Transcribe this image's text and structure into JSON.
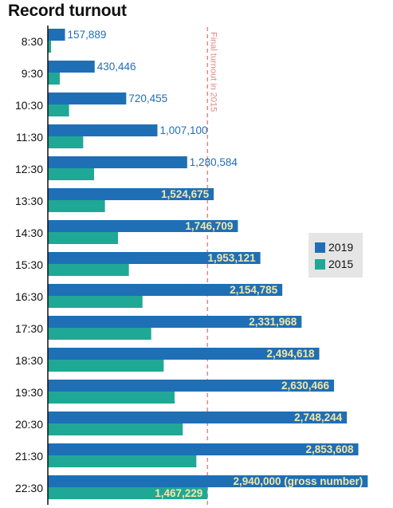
{
  "title": "Record turnout",
  "chart_data": {
    "type": "bar",
    "orientation": "horizontal",
    "title": "Record turnout",
    "categories": [
      "8:30",
      "9:30",
      "10:30",
      "11:30",
      "12:30",
      "13:30",
      "14:30",
      "15:30",
      "16:30",
      "17:30",
      "18:30",
      "19:30",
      "20:30",
      "21:30",
      "22:30"
    ],
    "series": [
      {
        "name": "2019",
        "color": "#1f6fb6",
        "values": [
          157889,
          430446,
          720455,
          1007100,
          1280584,
          1524675,
          1746709,
          1953121,
          2154785,
          2331968,
          2494618,
          2630466,
          2748244,
          2853608,
          2940000
        ],
        "labels": [
          "157,889",
          "430,446",
          "720,455",
          "1,007,100",
          "1,280,584",
          "1,524,675",
          "1,746,709",
          "1,953,121",
          "2,154,785",
          "2,331,968",
          "2,494,618",
          "2,630,466",
          "2,748,244",
          "2,853,608",
          "2,940,000 (gross number)"
        ]
      },
      {
        "name": "2015",
        "color": "#1fa896",
        "values": [
          30000,
          110000,
          195000,
          325000,
          425000,
          525000,
          645000,
          745000,
          870000,
          950000,
          1065000,
          1165000,
          1240000,
          1365000,
          1467229
        ],
        "labels": [
          "",
          "",
          "",
          "",
          "",
          "",
          "",
          "",
          "",
          "",
          "",
          "",
          "",
          "",
          "1,467,229"
        ]
      }
    ],
    "reference_line": {
      "value": 1467229,
      "label": "Final turnout in 2015",
      "color": "#e08a86",
      "style": "dashed"
    },
    "xlim": [
      0,
      3200000
    ],
    "grid": false,
    "legend": "right"
  }
}
